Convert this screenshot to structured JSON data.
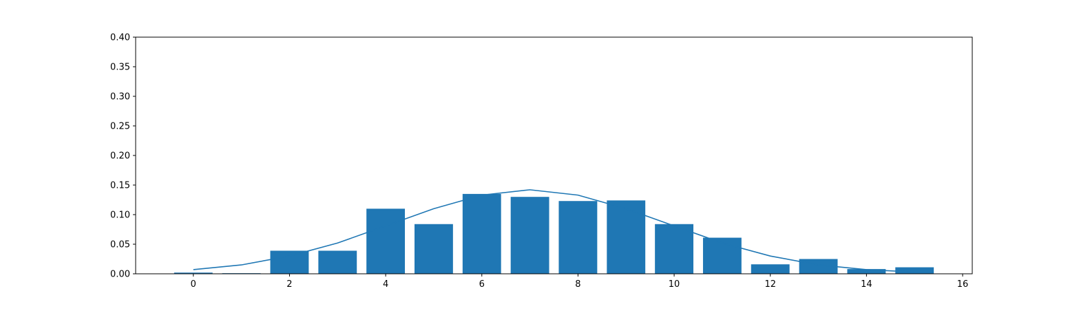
{
  "chart_data": {
    "type": "bar",
    "title": "",
    "xlabel": "",
    "ylabel": "",
    "xlim": [
      -1.2,
      16.2
    ],
    "ylim": [
      0,
      0.4
    ],
    "grid": false,
    "x_ticks": [
      0,
      2,
      4,
      6,
      8,
      10,
      12,
      14,
      16
    ],
    "x_tick_labels": [
      "0",
      "2",
      "4",
      "6",
      "8",
      "10",
      "12",
      "14",
      "16"
    ],
    "y_ticks": [
      0,
      0.05,
      0.1,
      0.15,
      0.2,
      0.25,
      0.3,
      0.35,
      0.4
    ],
    "y_tick_labels": [
      "0.00",
      "0.05",
      "0.10",
      "0.15",
      "0.20",
      "0.25",
      "0.30",
      "0.35",
      "0.40"
    ],
    "bar_width": 0.8,
    "bars": {
      "x": [
        0,
        1,
        2,
        3,
        4,
        5,
        6,
        7,
        8,
        9,
        10,
        11,
        12,
        13,
        14,
        15
      ],
      "values": [
        0.002,
        0.001,
        0.039,
        0.039,
        0.11,
        0.084,
        0.135,
        0.13,
        0.123,
        0.124,
        0.084,
        0.061,
        0.016,
        0.025,
        0.008,
        0.011
      ],
      "color": "#1f77b4"
    },
    "line": {
      "x": [
        0,
        1,
        2,
        3,
        4,
        5,
        6,
        7,
        8,
        9,
        10,
        11,
        12,
        13,
        14,
        15
      ],
      "values": [
        0.007,
        0.015,
        0.03,
        0.052,
        0.081,
        0.11,
        0.133,
        0.142,
        0.133,
        0.11,
        0.081,
        0.052,
        0.03,
        0.015,
        0.007,
        0.003
      ],
      "color": "#1f77b4"
    }
  }
}
